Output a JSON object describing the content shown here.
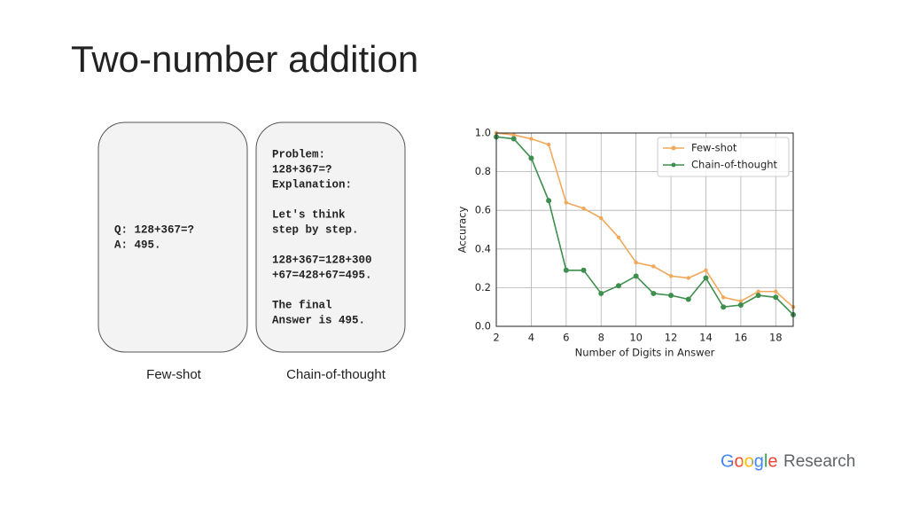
{
  "title": "Two-number addition",
  "panels": [
    {
      "caption": "Few-shot",
      "paragraphs": [
        [
          "Q: 128+367=?",
          "A: 495."
        ]
      ]
    },
    {
      "caption": "Chain-of-thought",
      "paragraphs": [
        [
          "Problem:",
          "128+367=?",
          "Explanation:"
        ],
        [
          "Let's think",
          "step by step."
        ],
        [
          "128+367=128+300",
          "+67=428+67=495."
        ],
        [
          "The final",
          "Answer is 495."
        ]
      ]
    }
  ],
  "chart_data": {
    "type": "line",
    "xlabel": "Number of Digits in Answer",
    "ylabel": "Accuracy",
    "x": [
      2,
      3,
      4,
      5,
      6,
      7,
      8,
      9,
      10,
      11,
      12,
      13,
      14,
      15,
      16,
      17,
      18,
      19
    ],
    "series": [
      {
        "name": "Few-shot",
        "color": "#f0a85a",
        "values": [
          1.0,
          0.99,
          0.97,
          0.94,
          0.64,
          0.61,
          0.56,
          0.46,
          0.33,
          0.31,
          0.26,
          0.25,
          0.29,
          0.15,
          0.13,
          0.18,
          0.18,
          0.1
        ]
      },
      {
        "name": "Chain-of-thought",
        "color": "#3e8e4e",
        "values": [
          0.98,
          0.97,
          0.87,
          0.65,
          0.29,
          0.29,
          0.17,
          0.21,
          0.26,
          0.17,
          0.16,
          0.14,
          0.25,
          0.1,
          0.11,
          0.16,
          0.15,
          0.06
        ]
      }
    ],
    "xlim": [
      2,
      19
    ],
    "xticks": [
      2,
      4,
      6,
      8,
      10,
      12,
      14,
      16,
      18
    ],
    "ylim": [
      0,
      1
    ],
    "yticks": [
      {
        "value": 0,
        "label": "0.0"
      },
      0.2,
      0.4,
      0.6,
      0.8,
      {
        "value": 1,
        "label": "1.0"
      }
    ],
    "grid": true,
    "legend": "upper right"
  },
  "logo": {
    "brand": "Google",
    "product": "Research"
  }
}
